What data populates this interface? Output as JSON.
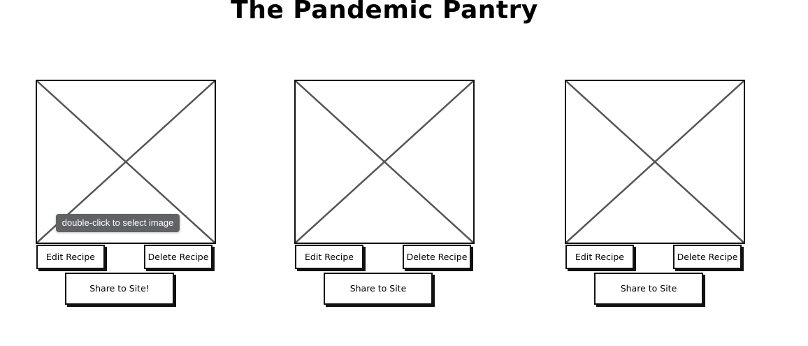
{
  "title": "The Pandemic Pantry",
  "tooltip": "double-click to select image",
  "cards": [
    {
      "edit_label": "Edit Recipe",
      "delete_label": "Delete Recipe",
      "share_label": "Share to Site!"
    },
    {
      "edit_label": "Edit Recipe",
      "delete_label": "Delete Recipe",
      "share_label": "Share to Site"
    },
    {
      "edit_label": "Edit Recipe",
      "delete_label": "Delete Recipe",
      "share_label": "Share to Site"
    }
  ],
  "colors": {
    "border": "#111111",
    "placeholder_lines": "#555555",
    "tooltip_bg": "#5f6366",
    "tooltip_text": "#ffffff"
  },
  "icons": {
    "image_placeholder": "image-placeholder-icon"
  }
}
